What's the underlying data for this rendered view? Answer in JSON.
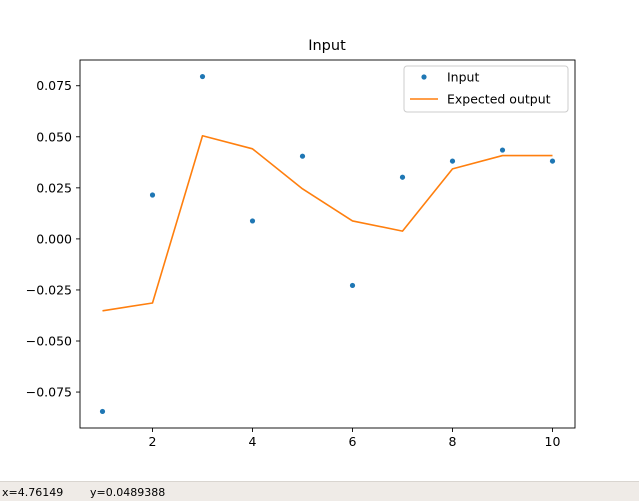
{
  "chart_data": {
    "type": "line",
    "title": "Input",
    "xlabel": "",
    "ylabel": "",
    "xlim": [
      0.55,
      10.45
    ],
    "ylim": [
      -0.0926,
      0.0876
    ],
    "xticks": [
      2,
      4,
      6,
      8,
      10
    ],
    "yticks": [
      -0.075,
      -0.05,
      -0.025,
      0.0,
      0.025,
      0.05,
      0.075
    ],
    "xtick_labels": [
      "2",
      "4",
      "6",
      "8",
      "10"
    ],
    "ytick_labels": [
      "−0.075",
      "−0.050",
      "−0.025",
      "0.000",
      "0.025",
      "0.050",
      "0.075"
    ],
    "grid": false,
    "legend_position": "top-right",
    "series": [
      {
        "name": "Input",
        "kind": "scatter",
        "color": "#1f77b4",
        "x": [
          1,
          2,
          3,
          4,
          5,
          6,
          7,
          8,
          9,
          10
        ],
        "y": [
          -0.0845,
          0.0215,
          0.0795,
          0.0088,
          0.0405,
          -0.0228,
          0.0302,
          0.0381,
          0.0435,
          0.0381
        ]
      },
      {
        "name": "Expected output",
        "kind": "line",
        "color": "#ff7f0e",
        "x": [
          1,
          2,
          3,
          4,
          5,
          6,
          7,
          8,
          9,
          10
        ],
        "y": [
          -0.0352,
          -0.0314,
          0.0505,
          0.0441,
          0.0245,
          0.0088,
          0.0038,
          0.0343,
          0.0408,
          0.0408
        ]
      }
    ]
  },
  "status": {
    "x_readout": "x=4.76149",
    "y_readout": "y=0.0489388"
  }
}
